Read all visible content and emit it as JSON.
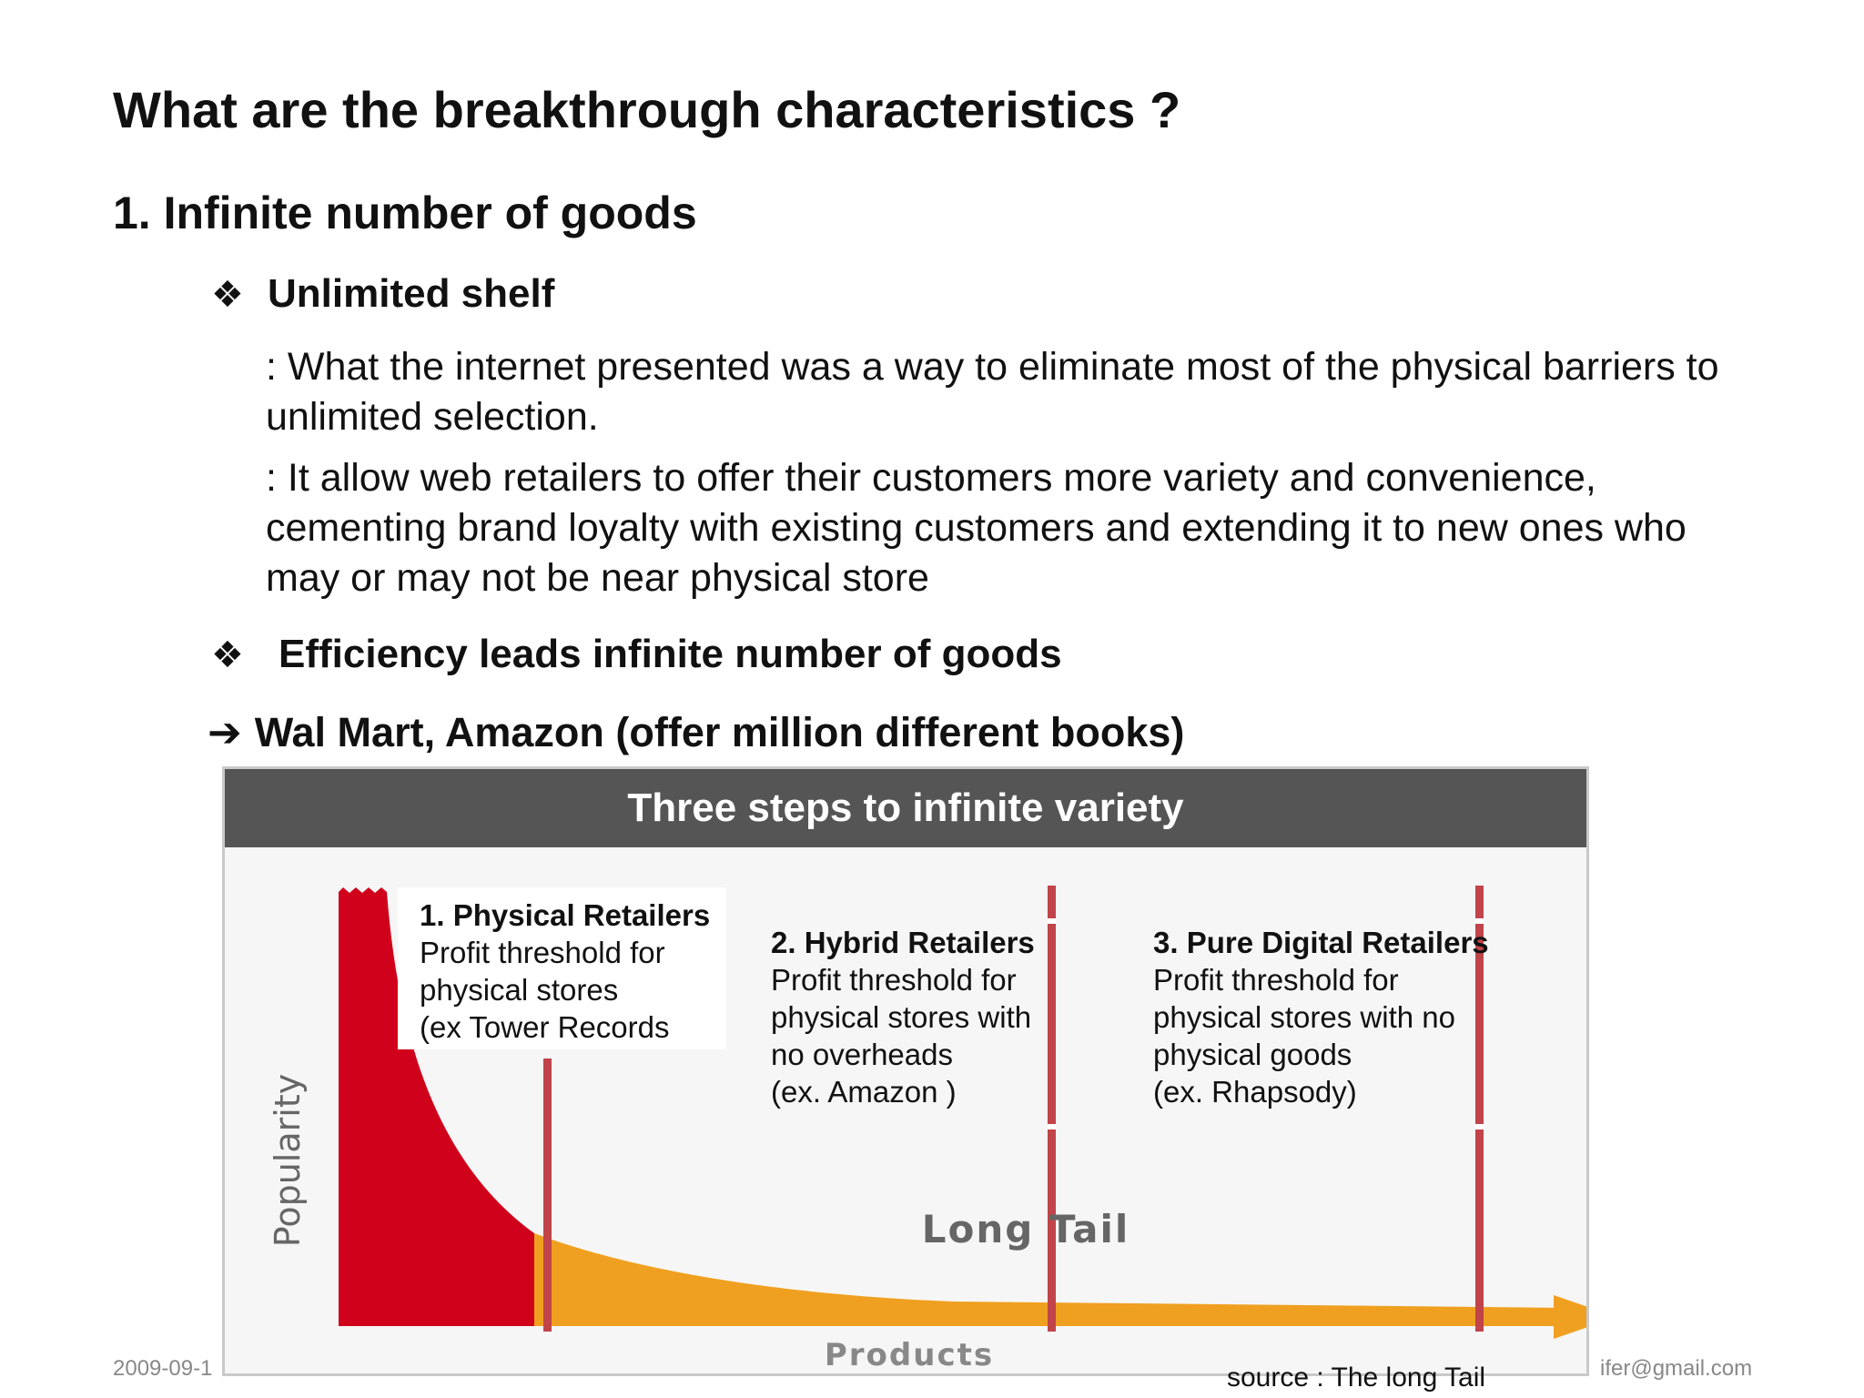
{
  "slide": {
    "title": "What are the breakthrough characteristics ?",
    "section": "1.  Infinite number  of goods",
    "bullet1": {
      "symbol": "❖",
      "label": "Unlimited shelf"
    },
    "para1": ": What the internet presented was a way to eliminate most of the physical barriers to unlimited selection.",
    "para2": ": It allow web retailers to offer their customers more variety and convenience, cementing brand loyalty with existing customers and extending it to new ones who may or may not be near physical store",
    "bullet2": {
      "symbol": "❖",
      "label": "Efficiency leads infinite number of goods"
    },
    "arrow_line": {
      "symbol": "➔",
      "label": "Wal Mart, Amazon (offer million different books)"
    }
  },
  "figure": {
    "header": "Three steps to infinite variety",
    "y_axis_label": "Popularity",
    "x_axis_label": "Products",
    "curve_label": "Long Tail",
    "panels": [
      {
        "heading": "1. Physical Retailers",
        "lines": [
          "Profit threshold for",
          "physical stores",
          "(ex Tower Records"
        ]
      },
      {
        "heading": "2. Hybrid Retailers",
        "lines": [
          "Profit threshold for",
          "physical stores with",
          "no overheads",
          "(ex. Amazon )"
        ]
      },
      {
        "heading": "3. Pure Digital Retailers",
        "lines": [
          "Profit threshold for",
          "physical stores with no",
          "physical goods",
          "(ex. Rhapsody)"
        ]
      }
    ],
    "colors": {
      "head": "#d0021b",
      "tail": "#f0a020",
      "threshold": "#c0444a",
      "header_bg": "#555555"
    }
  },
  "footer": {
    "date": "2009-09-1",
    "email": "ifer@gmail.com",
    "source": "source : The long Tail"
  }
}
